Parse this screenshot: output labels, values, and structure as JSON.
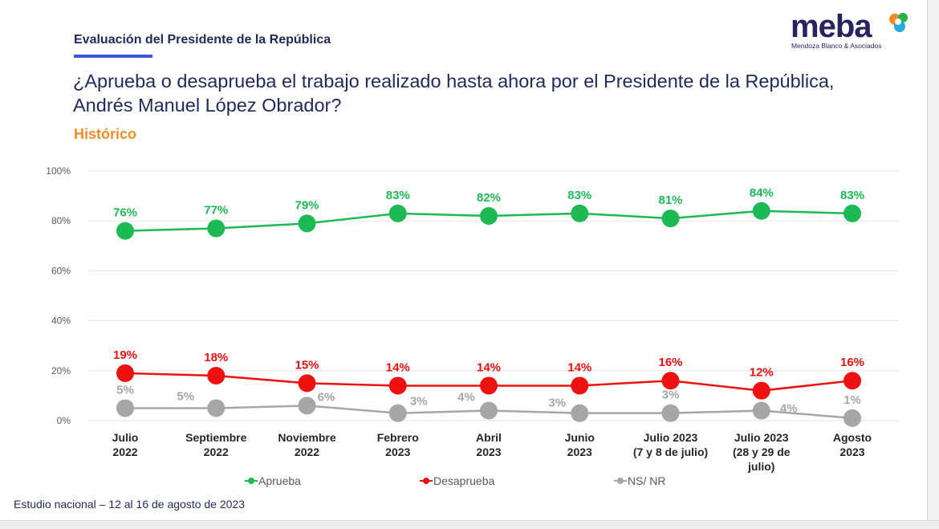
{
  "header": {
    "section": "Evaluación del Presidente de la República",
    "question": "¿Aprueba o desaprueba el trabajo realizado hasta ahora por el Presidente de la República, Andrés Manuel López Obrador?",
    "subtitle": "Histórico"
  },
  "logo": {
    "word": "meba",
    "tagline": "Mendoza Blanco & Asociados"
  },
  "footer": "Estudio nacional – 12 al 16 de agosto de 2023",
  "chart_data": {
    "type": "line",
    "categories": [
      [
        "Julio",
        "2022"
      ],
      [
        "Septiembre",
        "2022"
      ],
      [
        "Noviembre",
        "2022"
      ],
      [
        "Febrero",
        "2023"
      ],
      [
        "Abril",
        "2023"
      ],
      [
        "Junio",
        "2023"
      ],
      [
        "Julio 2023",
        "(7 y 8 de julio)"
      ],
      [
        "Julio 2023",
        "(28 y 29 de",
        "julio)"
      ],
      [
        "Agosto",
        "2023"
      ]
    ],
    "ylim": [
      0,
      100
    ],
    "yticks": [
      "0%",
      "20%",
      "40%",
      "60%",
      "80%",
      "100%"
    ],
    "grid": true,
    "legend_position": "bottom",
    "series": [
      {
        "name": "Aprueba",
        "color": "#1db954",
        "values": [
          76,
          77,
          79,
          83,
          82,
          83,
          81,
          84,
          83
        ],
        "labels": [
          "76%",
          "77%",
          "79%",
          "83%",
          "82%",
          "83%",
          "81%",
          "84%",
          "83%"
        ]
      },
      {
        "name": "Desaprueba",
        "color": "#ee1111",
        "values": [
          19,
          18,
          15,
          14,
          14,
          14,
          16,
          12,
          16
        ],
        "labels": [
          "19%",
          "18%",
          "15%",
          "14%",
          "14%",
          "14%",
          "16%",
          "12%",
          "16%"
        ]
      },
      {
        "name": "NS/ NR",
        "color": "#a6a6a6",
        "values": [
          5,
          5,
          6,
          3,
          4,
          3,
          3,
          4,
          1
        ],
        "labels": [
          "5%",
          "5%",
          "6%",
          "3%",
          "4%",
          "3%",
          "3%",
          "4%",
          "1%"
        ]
      }
    ]
  }
}
